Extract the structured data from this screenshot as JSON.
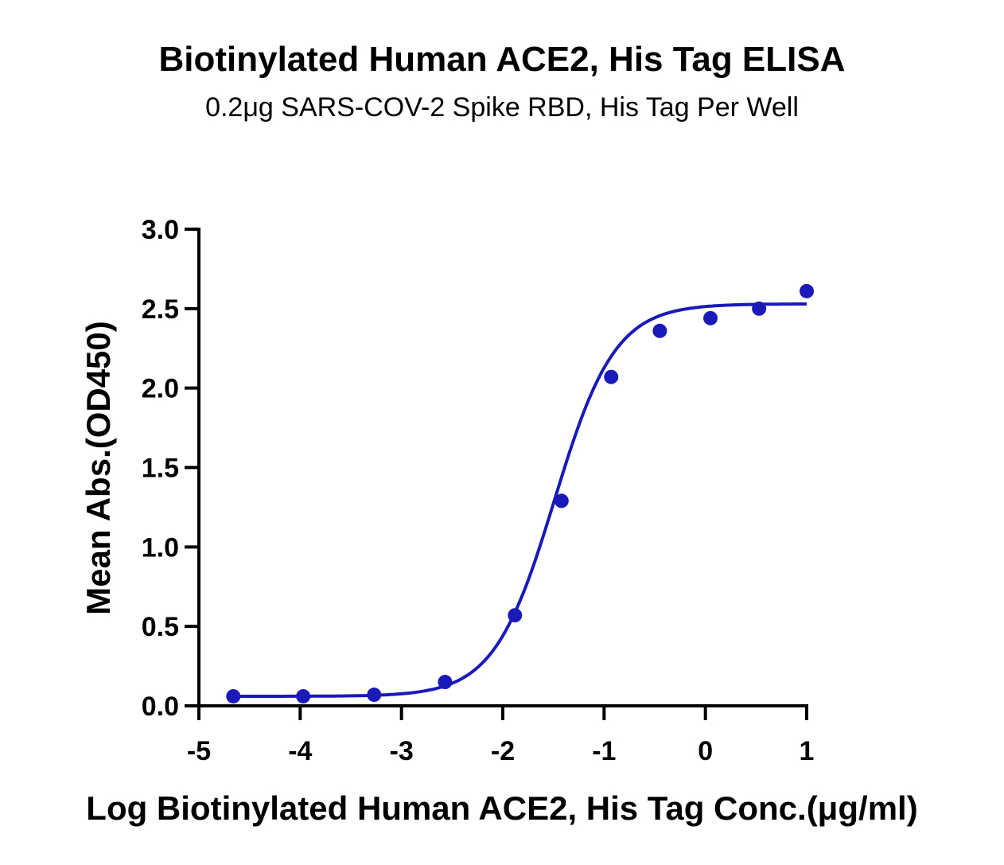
{
  "chart_data": {
    "type": "scatter",
    "title": "Biotinylated Human ACE2, His Tag ELISA",
    "subtitle": "0.2μg SARS-COV-2 Spike RBD, His Tag Per Well",
    "xlabel": "Log Biotinylated Human ACE2, His Tag Conc.(μg/ml)",
    "ylabel": "Mean Abs.(OD450)",
    "xlim": [
      -5,
      1
    ],
    "ylim": [
      0,
      3.0
    ],
    "x_ticks": [
      "-5",
      "-4",
      "-3",
      "-2",
      "-1",
      "0",
      "1"
    ],
    "y_ticks": [
      "0.0",
      "0.5",
      "1.0",
      "1.5",
      "2.0",
      "2.5",
      "3.0"
    ],
    "grid": false,
    "color": "#1a1ab8",
    "series": [
      {
        "x": [
          -4.66,
          -3.97,
          -3.27,
          -2.57,
          -1.88,
          -1.42,
          -0.93,
          -0.45,
          0.05,
          0.53,
          1.0
        ],
        "y": [
          0.06,
          0.06,
          0.07,
          0.15,
          0.57,
          1.29,
          2.07,
          2.36,
          2.44,
          2.5,
          2.61
        ]
      }
    ],
    "fit": {
      "bottom": 0.06,
      "top": 2.53,
      "logEC50": -1.49,
      "hill": 1.45
    }
  }
}
